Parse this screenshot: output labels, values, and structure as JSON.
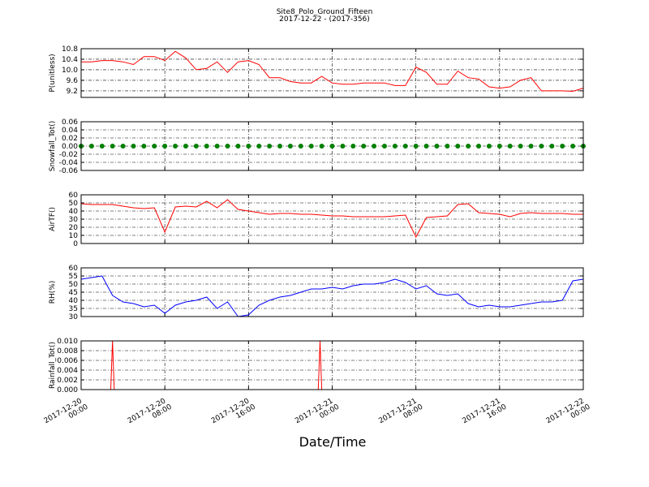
{
  "title": "Site8_Polo_Ground_Fifteen",
  "subtitle": "2017-12-22 - (2017-356)",
  "xlabel": "Date/Time",
  "xlim": [
    "2017-12-20 00:00",
    "2017-12-22 00:00"
  ],
  "xticks": [
    "2017-12-20 00:00",
    "2017-12-20 08:00",
    "2017-12-20 16:00",
    "2017-12-21 00:00",
    "2017-12-21 08:00",
    "2017-12-21 16:00",
    "2017-12-22 00:00"
  ],
  "x": [
    "2017-12-20 00:00",
    "2017-12-20 01:00",
    "2017-12-20 02:00",
    "2017-12-20 03:00",
    "2017-12-20 04:00",
    "2017-12-20 05:00",
    "2017-12-20 06:00",
    "2017-12-20 07:00",
    "2017-12-20 08:00",
    "2017-12-20 09:00",
    "2017-12-20 10:00",
    "2017-12-20 11:00",
    "2017-12-20 12:00",
    "2017-12-20 13:00",
    "2017-12-20 14:00",
    "2017-12-20 15:00",
    "2017-12-20 16:00",
    "2017-12-20 17:00",
    "2017-12-20 18:00",
    "2017-12-20 19:00",
    "2017-12-20 20:00",
    "2017-12-20 21:00",
    "2017-12-20 22:00",
    "2017-12-20 23:00",
    "2017-12-21 00:00",
    "2017-12-21 01:00",
    "2017-12-21 02:00",
    "2017-12-21 03:00",
    "2017-12-21 04:00",
    "2017-12-21 05:00",
    "2017-12-21 06:00",
    "2017-12-21 07:00",
    "2017-12-21 08:00",
    "2017-12-21 09:00",
    "2017-12-21 10:00",
    "2017-12-21 11:00",
    "2017-12-21 12:00",
    "2017-12-21 13:00",
    "2017-12-21 14:00",
    "2017-12-21 15:00",
    "2017-12-21 16:00",
    "2017-12-21 17:00",
    "2017-12-21 18:00",
    "2017-12-21 19:00",
    "2017-12-21 20:00",
    "2017-12-21 21:00",
    "2017-12-21 22:00",
    "2017-12-21 23:00",
    "2017-12-22 00:00"
  ],
  "chart_data": [
    {
      "type": "line",
      "ylabel": "P(unitless)",
      "color": "#ff0000",
      "ylim": [
        8.95,
        10.8
      ],
      "yticks": [
        9.2,
        9.6,
        {
          "value": 10,
          "label": "10.0"
        },
        10.4,
        10.8
      ],
      "grid": true,
      "values": [
        10.3,
        10.3,
        10.35,
        10.35,
        10.3,
        10.2,
        10.5,
        10.5,
        10.35,
        10.7,
        10.45,
        10.0,
        10.05,
        10.3,
        9.9,
        10.3,
        10.35,
        10.2,
        9.7,
        9.7,
        9.55,
        9.5,
        9.5,
        9.75,
        9.5,
        9.45,
        9.45,
        9.5,
        9.5,
        9.5,
        9.4,
        9.4,
        10.1,
        9.9,
        9.45,
        9.45,
        9.95,
        9.7,
        9.65,
        9.35,
        9.3,
        9.35,
        9.6,
        9.7,
        9.2,
        9.2,
        9.2,
        9.18,
        9.3
      ]
    },
    {
      "type": "scatter",
      "ylabel": "Snowfall_Tot()",
      "color": "#008000",
      "ylim": [
        -0.06,
        0.06
      ],
      "yticks": [
        -0.06,
        -0.04,
        -0.02,
        {
          "value": 0,
          "label": "0.00"
        },
        0.02,
        0.04,
        0.06
      ],
      "grid": true,
      "values": [
        0,
        0,
        0,
        0,
        0,
        0,
        0,
        0,
        0,
        0,
        0,
        0,
        0,
        0,
        0,
        0,
        0,
        0,
        0,
        0,
        0,
        0,
        0,
        0,
        0,
        0,
        0,
        0,
        0,
        0,
        0,
        0,
        0,
        0,
        0,
        0,
        0,
        0,
        0,
        0,
        0,
        0,
        0,
        0,
        0,
        0,
        0,
        0,
        0
      ]
    },
    {
      "type": "line",
      "ylabel": "AirTF()",
      "color": "#ff0000",
      "ylim": [
        0,
        60
      ],
      "yticks": [
        0,
        10,
        20,
        30,
        40,
        50,
        60
      ],
      "grid": true,
      "values": [
        49,
        48,
        48,
        48,
        46,
        44,
        43,
        44,
        14,
        45,
        46,
        45,
        52,
        44,
        54,
        42,
        40,
        38,
        36,
        37,
        37,
        36,
        36,
        35,
        34,
        34,
        33,
        33,
        33,
        33,
        34,
        35,
        8,
        32,
        33,
        34,
        48,
        49,
        38,
        37,
        36,
        33,
        37,
        38,
        37,
        37,
        37,
        36,
        36
      ]
    },
    {
      "type": "line",
      "ylabel": "RH(%)",
      "color": "#0000ff",
      "ylim": [
        30,
        60
      ],
      "yticks": [
        30,
        35,
        40,
        45,
        50,
        55,
        60
      ],
      "grid": true,
      "values": [
        53,
        54,
        55,
        43,
        39,
        38,
        36,
        37,
        32,
        37,
        39,
        40,
        42,
        35,
        39,
        30,
        31,
        37,
        40,
        42,
        43,
        45,
        47,
        47,
        48,
        47,
        49,
        50,
        50,
        51,
        53,
        51,
        47,
        49,
        44,
        43,
        44,
        38,
        36,
        37,
        36,
        36,
        37,
        38,
        39,
        39,
        40,
        52,
        53
      ]
    },
    {
      "type": "line",
      "ylabel": "Rainfall_Tot()",
      "color": "#ff0000",
      "ylim": [
        0,
        0.01
      ],
      "yticks": [
        {
          "value": 0,
          "label": "0.000"
        },
        0.002,
        0.004,
        0.006,
        0.008,
        {
          "value": 0.01,
          "label": "0.010"
        }
      ],
      "grid": true,
      "x": [
        "2017-12-20 00:00",
        "2017-12-20 02:50",
        "2017-12-20 03:00",
        "2017-12-20 03:10",
        "2017-12-20 22:40",
        "2017-12-20 22:50",
        "2017-12-20 23:00",
        "2017-12-22 00:00"
      ],
      "values": [
        0,
        0,
        0.01,
        0,
        0,
        0.01,
        0,
        0
      ]
    }
  ]
}
